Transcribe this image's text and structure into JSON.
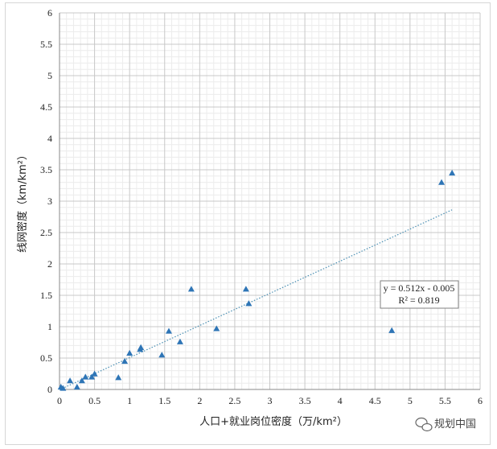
{
  "watermark": {
    "text": "规划中国",
    "icon": "wechat-icon"
  },
  "chart_data": {
    "type": "scatter",
    "xlabel": "人口+就业岗位密度（万/km²）",
    "ylabel": "线网密度（km/km²）",
    "xlim": [
      0,
      6
    ],
    "ylim": [
      0,
      6
    ],
    "x_ticks": [
      "0",
      "0.5",
      "1",
      "1.5",
      "2",
      "2.5",
      "3",
      "3.5",
      "4",
      "4.5",
      "5",
      "5.5",
      "6"
    ],
    "y_ticks": [
      "0",
      "0.5",
      "1",
      "1.5",
      "2",
      "2.5",
      "3",
      "3.5",
      "4",
      "4.5",
      "5",
      "5.5",
      "6"
    ],
    "grid": true,
    "marker": "triangle",
    "marker_color": "#2e75b6",
    "points": [
      {
        "x": 0.02,
        "y": 0.04
      },
      {
        "x": 0.05,
        "y": 0.02
      },
      {
        "x": 0.15,
        "y": 0.14
      },
      {
        "x": 0.25,
        "y": 0.04
      },
      {
        "x": 0.32,
        "y": 0.14
      },
      {
        "x": 0.37,
        "y": 0.2
      },
      {
        "x": 0.46,
        "y": 0.2
      },
      {
        "x": 0.5,
        "y": 0.25
      },
      {
        "x": 0.84,
        "y": 0.19
      },
      {
        "x": 0.93,
        "y": 0.45
      },
      {
        "x": 1.0,
        "y": 0.58
      },
      {
        "x": 1.15,
        "y": 0.64
      },
      {
        "x": 1.16,
        "y": 0.67
      },
      {
        "x": 1.46,
        "y": 0.55
      },
      {
        "x": 1.56,
        "y": 0.93
      },
      {
        "x": 1.72,
        "y": 0.76
      },
      {
        "x": 1.88,
        "y": 1.6
      },
      {
        "x": 2.24,
        "y": 0.97
      },
      {
        "x": 2.66,
        "y": 1.6
      },
      {
        "x": 2.7,
        "y": 1.37
      },
      {
        "x": 4.74,
        "y": 0.94
      },
      {
        "x": 5.45,
        "y": 3.3
      },
      {
        "x": 5.6,
        "y": 3.45
      }
    ],
    "trendline": {
      "type": "linear",
      "slope": 0.512,
      "intercept": -0.005,
      "x_range": [
        0,
        5.6
      ],
      "color": "#4a8fb3",
      "style": "dotted"
    },
    "annotation": {
      "equation": "y = 0.512x - 0.005",
      "r_squared": "R² = 0.819"
    }
  }
}
